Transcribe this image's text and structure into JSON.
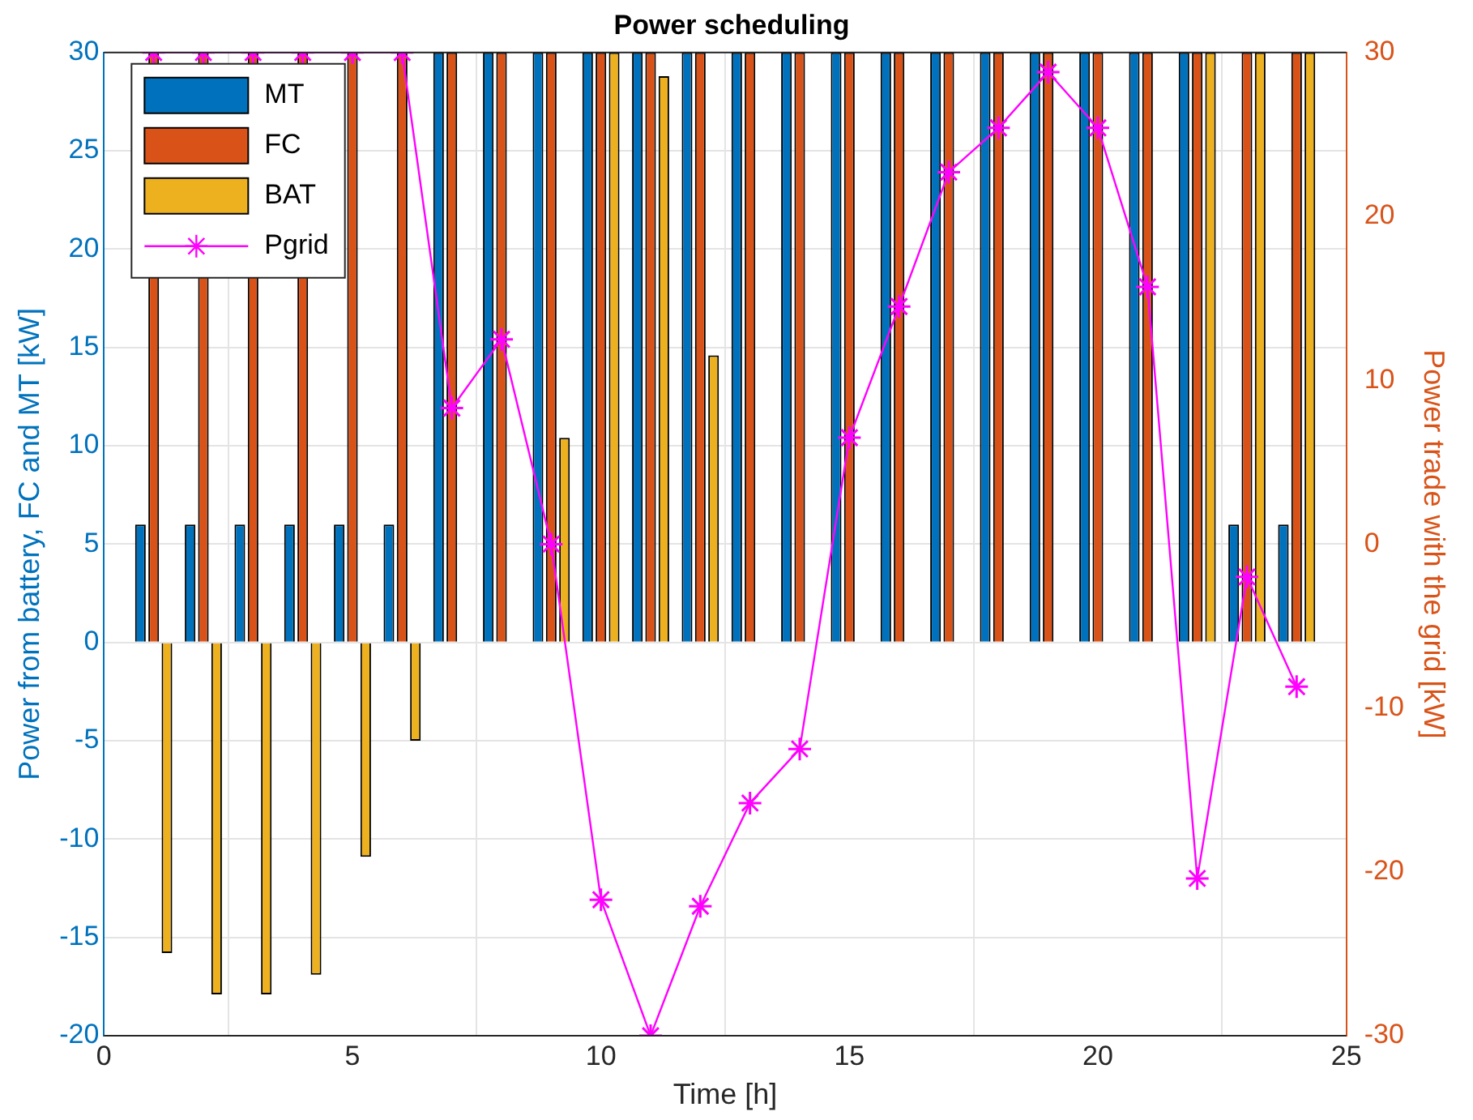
{
  "chart_data": {
    "type": "bar",
    "title": "Power scheduling",
    "xlabel": "Time [h]",
    "ylabel": "Power from battery, FC and MT [kW]",
    "y2label": "Power trade with the grid [kW]",
    "x": [
      1,
      2,
      3,
      4,
      5,
      6,
      7,
      8,
      9,
      10,
      11,
      12,
      13,
      14,
      15,
      16,
      17,
      18,
      19,
      20,
      21,
      22,
      23,
      24
    ],
    "series": [
      {
        "name": "MT",
        "color": "#0072bd",
        "values": [
          6,
          6,
          6,
          6,
          6,
          6,
          30,
          30,
          30,
          30,
          30,
          30,
          30,
          30,
          30,
          30,
          30,
          30,
          30,
          30,
          30,
          30,
          6,
          6
        ]
      },
      {
        "name": "FC",
        "color": "#d95319",
        "values": [
          30,
          30,
          30,
          30,
          30,
          30,
          30,
          30,
          30,
          30,
          30,
          30,
          30,
          30,
          30,
          30,
          30,
          30,
          30,
          30,
          30,
          30,
          30,
          30
        ]
      },
      {
        "name": "BAT",
        "color": "#edb120",
        "values": [
          -15.8,
          -17.9,
          -17.9,
          -16.9,
          -10.9,
          -5,
          0,
          0,
          10.4,
          30,
          28.8,
          14.6,
          0,
          0,
          0,
          0,
          0,
          0,
          0,
          0,
          0,
          30,
          30,
          30
        ]
      },
      {
        "name": "Pgrid",
        "type": "line",
        "axis": "y2",
        "marker": "cross",
        "color": "#ff00ff",
        "values": [
          30,
          30,
          30,
          30,
          30,
          30,
          8.3,
          12.5,
          0,
          -21.7,
          -30,
          -22.1,
          -15.8,
          -12.5,
          6.5,
          14.5,
          22.7,
          25.4,
          28.8,
          25.4,
          15.7,
          -20.4,
          -2,
          -8.7
        ]
      }
    ],
    "xlim": [
      0,
      25
    ],
    "xticks": [
      0,
      5,
      10,
      15,
      20,
      25
    ],
    "ylim": [
      -20,
      30
    ],
    "yticks": [
      -20,
      -15,
      -10,
      -5,
      0,
      5,
      10,
      15,
      20,
      25,
      30
    ],
    "y2lim": [
      -30,
      30
    ],
    "y2ticks": [
      -30,
      -20,
      -10,
      0,
      10,
      20,
      30
    ],
    "grid": true,
    "legend": "top left"
  }
}
